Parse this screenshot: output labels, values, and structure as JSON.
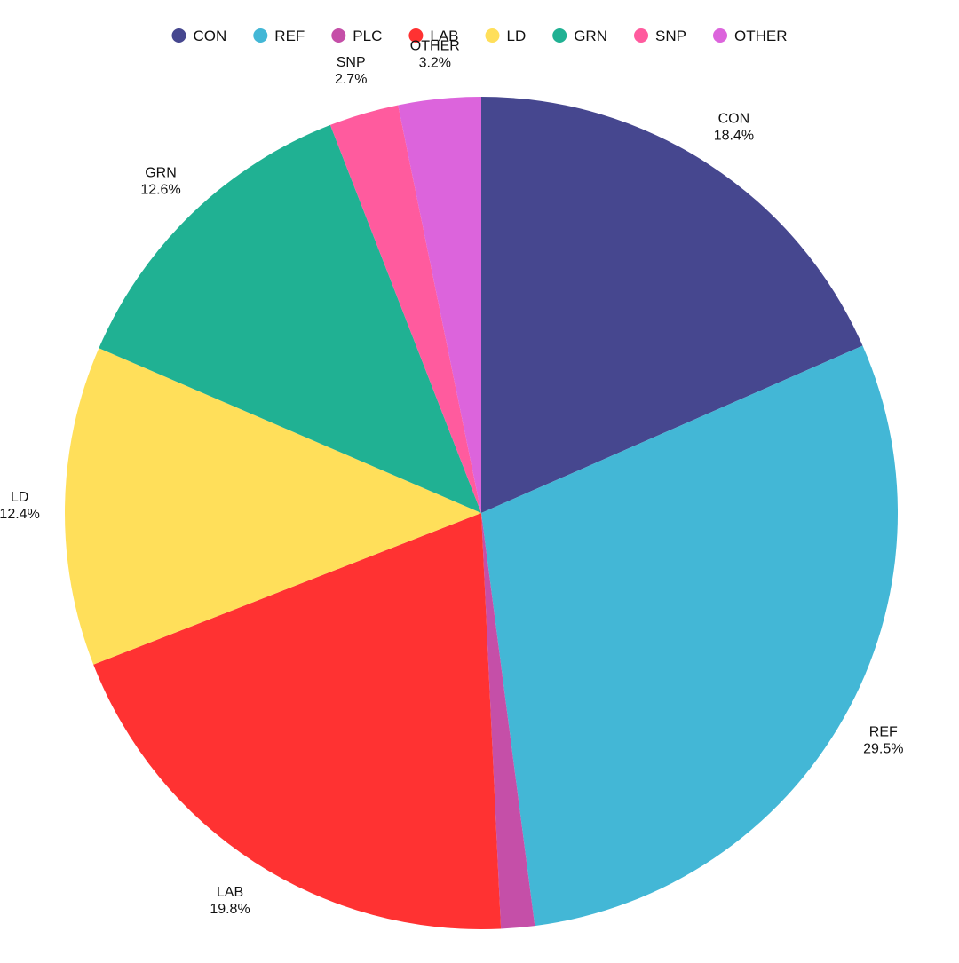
{
  "chart_data": {
    "type": "pie",
    "legend_position": "top",
    "slices": [
      {
        "label": "CON",
        "value": 18.4,
        "display": "18.4%",
        "color": "#46478f"
      },
      {
        "label": "REF",
        "value": 29.5,
        "display": "29.5%",
        "color": "#43b7d6"
      },
      {
        "label": "PLC",
        "value": 1.3,
        "display": "1.3%",
        "color": "#c54fa8"
      },
      {
        "label": "LAB",
        "value": 19.8,
        "display": "19.8%",
        "color": "#ff3232"
      },
      {
        "label": "LD",
        "value": 12.4,
        "display": "12.4%",
        "color": "#ffdf5a"
      },
      {
        "label": "GRN",
        "value": 12.6,
        "display": "12.6%",
        "color": "#20b193"
      },
      {
        "label": "SNP",
        "value": 2.7,
        "display": "2.7%",
        "color": "#ff5b9e"
      },
      {
        "label": "OTHER",
        "value": 3.2,
        "display": "3.2%",
        "color": "#dc64dc"
      }
    ]
  }
}
